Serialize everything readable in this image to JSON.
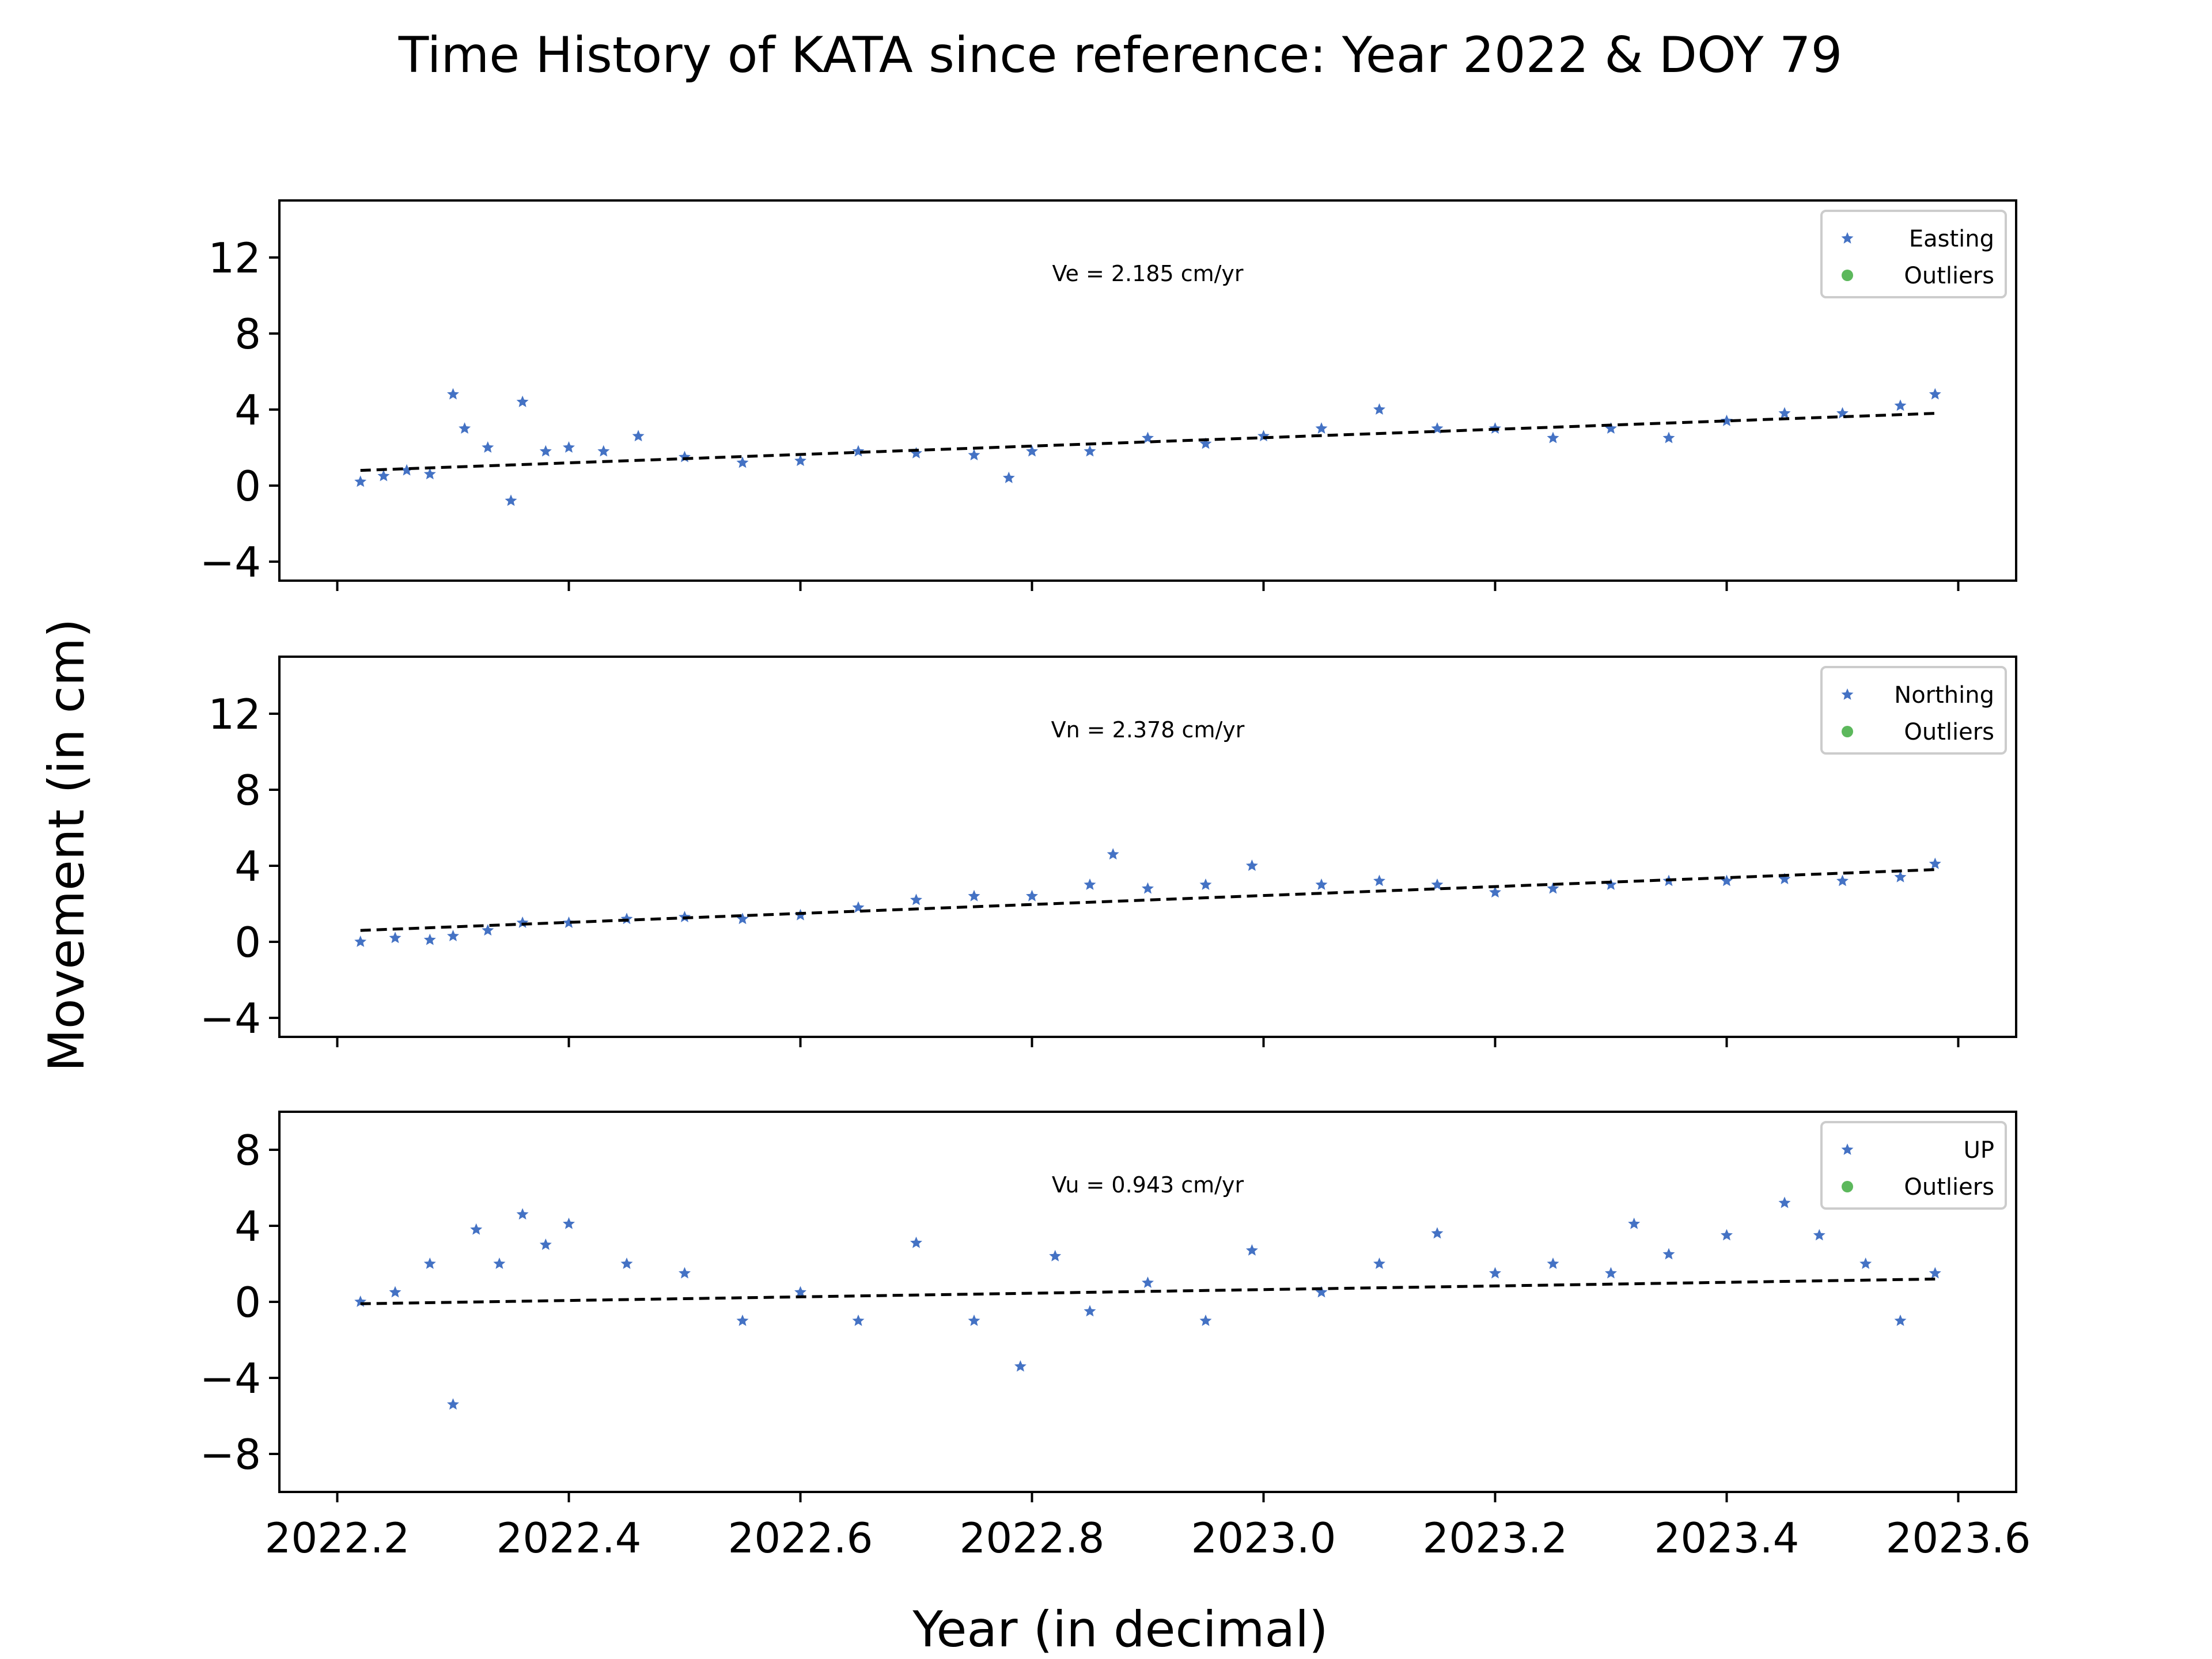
{
  "figure": {
    "title": "Time History of KATA since reference: Year 2022 & DOY 79",
    "ylabel": "Movement (in cm)",
    "xlabel": "Year (in decimal)"
  },
  "colors": {
    "series": "#4472c4",
    "outliers": "#5cb85c",
    "trend": "#000000"
  },
  "chart_data": [
    {
      "type": "scatter",
      "xlim": [
        2022.15,
        2023.65
      ],
      "ylim": [
        -5,
        15
      ],
      "x_ticks": [
        2022.2,
        2022.4,
        2022.6,
        2022.8,
        2023.0,
        2023.2,
        2023.4,
        2023.6
      ],
      "x_tick_labels": [],
      "y_ticks": [
        -4,
        0,
        4,
        8,
        12
      ],
      "y_tick_labels": [
        "−4",
        "0",
        "4",
        "8",
        "12"
      ],
      "annotation": "Ve =  2.185 cm/yr",
      "legend_position": "upper right",
      "legend": [
        {
          "label": "Easting",
          "marker": "star"
        },
        {
          "label": "Outliers",
          "marker": "dot"
        }
      ],
      "trend": {
        "x": [
          2022.22,
          2023.58
        ],
        "y": [
          0.8,
          3.8
        ]
      },
      "series": [
        {
          "name": "Easting",
          "x": [
            2022.22,
            2022.24,
            2022.26,
            2022.28,
            2022.3,
            2022.31,
            2022.33,
            2022.35,
            2022.36,
            2022.38,
            2022.4,
            2022.43,
            2022.46,
            2022.5,
            2022.55,
            2022.6,
            2022.65,
            2022.7,
            2022.75,
            2022.78,
            2022.8,
            2022.85,
            2022.9,
            2022.95,
            2023.0,
            2023.05,
            2023.1,
            2023.15,
            2023.2,
            2023.25,
            2023.3,
            2023.35,
            2023.4,
            2023.45,
            2023.5,
            2023.55,
            2023.58
          ],
          "y": [
            0.2,
            0.5,
            0.8,
            0.6,
            4.8,
            3.0,
            2.0,
            -0.8,
            4.4,
            1.8,
            2.0,
            1.8,
            2.6,
            1.5,
            1.2,
            1.3,
            1.8,
            1.7,
            1.6,
            0.4,
            1.8,
            1.8,
            2.5,
            2.2,
            2.6,
            3.0,
            4.0,
            3.0,
            3.0,
            2.5,
            3.0,
            2.5,
            3.4,
            3.8,
            3.8,
            4.2,
            4.8
          ]
        },
        {
          "name": "Outliers",
          "x": [],
          "y": []
        }
      ]
    },
    {
      "type": "scatter",
      "xlim": [
        2022.15,
        2023.65
      ],
      "ylim": [
        -5,
        15
      ],
      "x_ticks": [
        2022.2,
        2022.4,
        2022.6,
        2022.8,
        2023.0,
        2023.2,
        2023.4,
        2023.6
      ],
      "x_tick_labels": [],
      "y_ticks": [
        -4,
        0,
        4,
        8,
        12
      ],
      "y_tick_labels": [
        "−4",
        "0",
        "4",
        "8",
        "12"
      ],
      "annotation": "Vn =  2.378 cm/yr",
      "legend_position": "upper right",
      "legend": [
        {
          "label": "Northing",
          "marker": "star"
        },
        {
          "label": "Outliers",
          "marker": "dot"
        }
      ],
      "trend": {
        "x": [
          2022.22,
          2023.58
        ],
        "y": [
          0.6,
          3.8
        ]
      },
      "series": [
        {
          "name": "Northing",
          "x": [
            2022.22,
            2022.25,
            2022.28,
            2022.3,
            2022.33,
            2022.36,
            2022.4,
            2022.45,
            2022.5,
            2022.55,
            2022.6,
            2022.65,
            2022.7,
            2022.75,
            2022.8,
            2022.85,
            2022.87,
            2022.9,
            2022.95,
            2022.99,
            2023.05,
            2023.1,
            2023.15,
            2023.2,
            2023.25,
            2023.3,
            2023.35,
            2023.4,
            2023.45,
            2023.5,
            2023.55,
            2023.58
          ],
          "y": [
            0.0,
            0.2,
            0.1,
            0.3,
            0.6,
            1.0,
            1.0,
            1.2,
            1.3,
            1.2,
            1.4,
            1.8,
            2.2,
            2.4,
            2.4,
            3.0,
            4.6,
            2.8,
            3.0,
            4.0,
            3.0,
            3.2,
            3.0,
            2.6,
            2.8,
            3.0,
            3.2,
            3.2,
            3.3,
            3.2,
            3.4,
            4.1
          ]
        },
        {
          "name": "Outliers",
          "x": [],
          "y": []
        }
      ]
    },
    {
      "type": "scatter",
      "xlim": [
        2022.15,
        2023.65
      ],
      "ylim": [
        -10,
        10
      ],
      "x_ticks": [
        2022.2,
        2022.4,
        2022.6,
        2022.8,
        2023.0,
        2023.2,
        2023.4,
        2023.6
      ],
      "x_tick_labels": [
        "2022.2",
        "2022.4",
        "2022.6",
        "2022.8",
        "2023.0",
        "2023.2",
        "2023.4",
        "2023.6"
      ],
      "y_ticks": [
        -8,
        -4,
        0,
        4,
        8
      ],
      "y_tick_labels": [
        "−8",
        "−4",
        "0",
        "4",
        "8"
      ],
      "annotation": "Vu =  0.943 cm/yr",
      "legend_position": "upper right",
      "legend": [
        {
          "label": "UP",
          "marker": "star"
        },
        {
          "label": "Outliers",
          "marker": "dot"
        }
      ],
      "trend": {
        "x": [
          2022.22,
          2023.58
        ],
        "y": [
          -0.1,
          1.2
        ]
      },
      "series": [
        {
          "name": "UP",
          "x": [
            2022.22,
            2022.25,
            2022.28,
            2022.3,
            2022.32,
            2022.34,
            2022.36,
            2022.38,
            2022.4,
            2022.45,
            2022.5,
            2022.55,
            2022.6,
            2022.65,
            2022.7,
            2022.75,
            2022.79,
            2022.82,
            2022.85,
            2022.9,
            2022.95,
            2022.99,
            2023.05,
            2023.1,
            2023.15,
            2023.2,
            2023.25,
            2023.3,
            2023.32,
            2023.35,
            2023.4,
            2023.45,
            2023.48,
            2023.52,
            2023.55,
            2023.58
          ],
          "y": [
            0.0,
            0.5,
            2.0,
            -5.4,
            3.8,
            2.0,
            4.6,
            3.0,
            4.1,
            2.0,
            1.5,
            -1.0,
            0.5,
            -1.0,
            3.1,
            -1.0,
            -3.4,
            2.4,
            -0.5,
            1.0,
            -1.0,
            2.7,
            0.5,
            2.0,
            3.6,
            1.5,
            2.0,
            1.5,
            4.1,
            2.5,
            3.5,
            5.2,
            3.5,
            2.0,
            -1.0,
            1.5
          ]
        },
        {
          "name": "Outliers",
          "x": [],
          "y": []
        }
      ]
    }
  ]
}
